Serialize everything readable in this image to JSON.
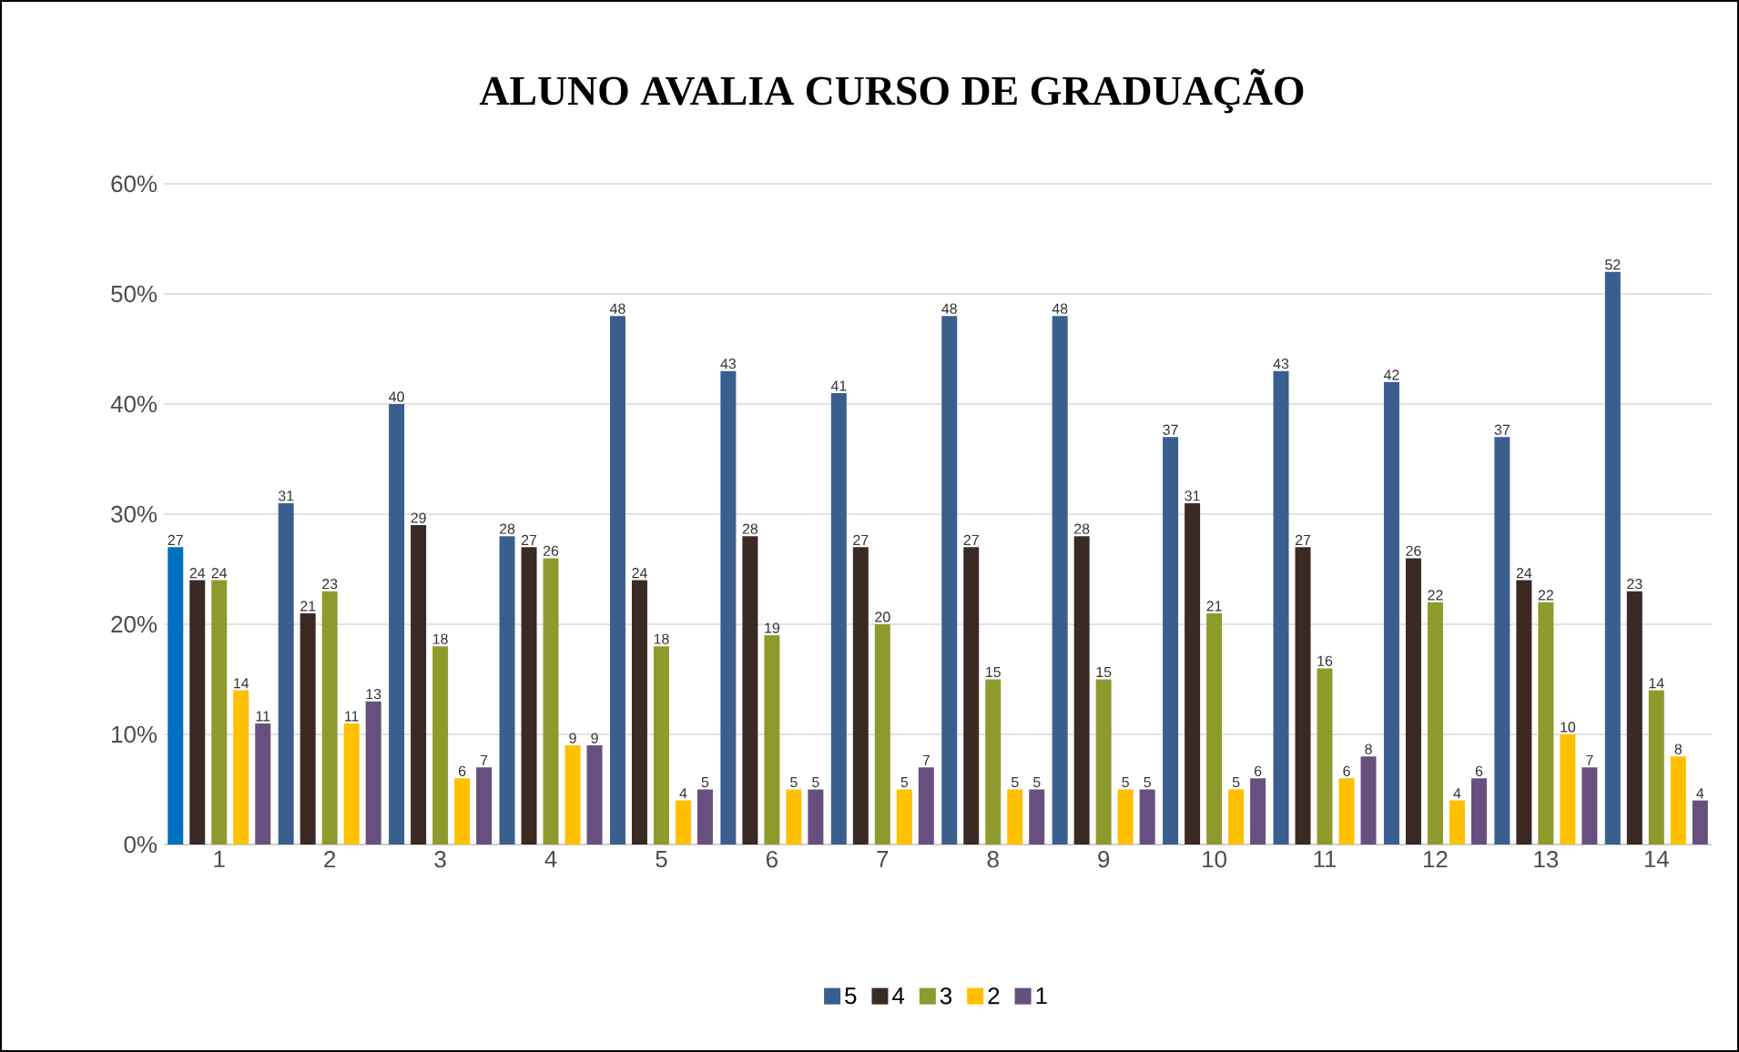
{
  "chart_data": {
    "type": "bar",
    "title": "ALUNO AVALIA CURSO DE GRADUAÇÃO",
    "categories": [
      "1",
      "2",
      "3",
      "4",
      "5",
      "6",
      "7",
      "8",
      "9",
      "10",
      "11",
      "12",
      "13",
      "14"
    ],
    "series": [
      {
        "name": "5",
        "color": "#3a5f8f",
        "colors": [
          "#0070c0",
          "#3a5f8f",
          "#3a5f8f",
          "#3a5f8f",
          "#3a5f8f",
          "#3a5f8f",
          "#3a5f8f",
          "#3a5f8f",
          "#3a5f8f",
          "#3a5f8f",
          "#3a5f8f",
          "#3a5f8f",
          "#3a5f8f",
          "#3a5f8f"
        ],
        "values": [
          27,
          31,
          40,
          28,
          48,
          43,
          41,
          48,
          48,
          37,
          43,
          42,
          37,
          52
        ]
      },
      {
        "name": "4",
        "color": "#3b2a24",
        "values": [
          24,
          21,
          29,
          27,
          24,
          28,
          27,
          27,
          28,
          31,
          27,
          26,
          24,
          23
        ]
      },
      {
        "name": "3",
        "color": "#8f9a2d",
        "values": [
          24,
          23,
          18,
          26,
          18,
          19,
          20,
          15,
          15,
          21,
          16,
          22,
          22,
          14
        ]
      },
      {
        "name": "2",
        "color": "#ffc000",
        "values": [
          14,
          11,
          6,
          9,
          4,
          5,
          5,
          5,
          5,
          5,
          6,
          4,
          10,
          8
        ]
      },
      {
        "name": "1",
        "color": "#67507f",
        "values": [
          11,
          13,
          7,
          9,
          5,
          5,
          7,
          5,
          5,
          6,
          8,
          6,
          7,
          4
        ]
      }
    ],
    "ylim": [
      0,
      60
    ],
    "yticks": [
      {
        "value": 0,
        "label": "0%"
      },
      {
        "value": 10,
        "label": "10%"
      },
      {
        "value": 20,
        "label": "20%"
      },
      {
        "value": 30,
        "label": "30%"
      },
      {
        "value": 40,
        "label": "40%"
      },
      {
        "value": 50,
        "label": "50%"
      },
      {
        "value": 60,
        "label": "60%"
      }
    ],
    "grid": "y",
    "legend": "bottom",
    "data_labels": true
  }
}
